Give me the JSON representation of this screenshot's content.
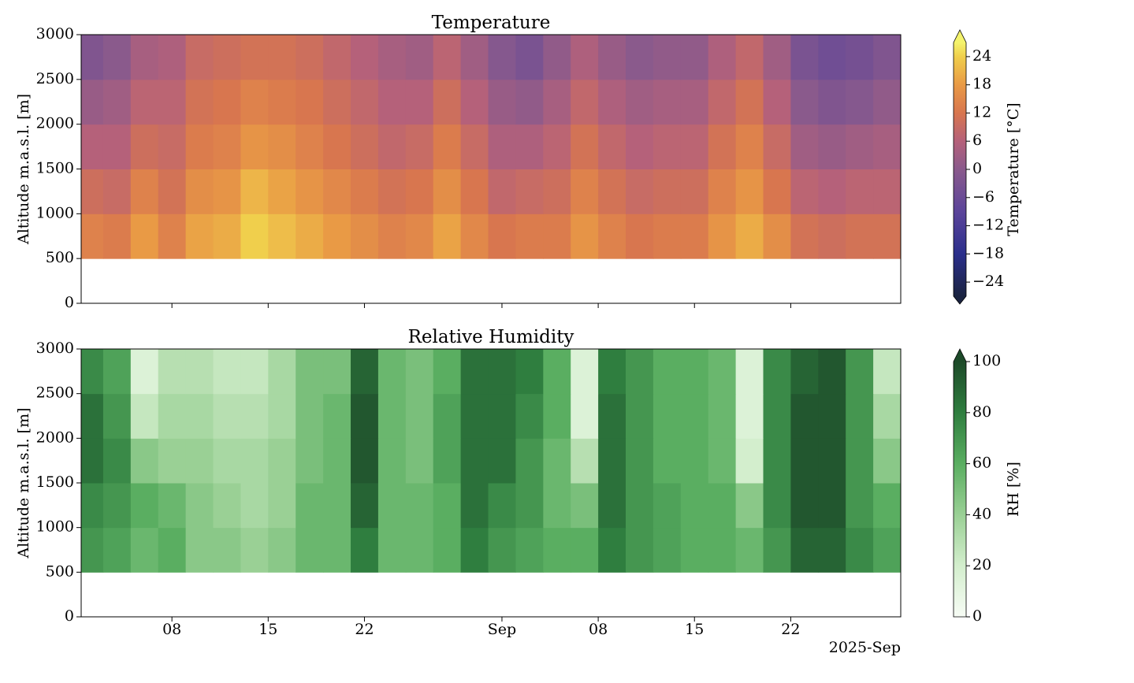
{
  "chart_data": [
    {
      "type": "heatmap",
      "title": "Temperature",
      "ylabel": "Altitude m.a.s.l. [m]",
      "x_edges": [
        0,
        2,
        4,
        6,
        8,
        10,
        12,
        14,
        16,
        18,
        20,
        22,
        24,
        26,
        28,
        30,
        32,
        34,
        36,
        38,
        40,
        42,
        44,
        46,
        48,
        50,
        52,
        54,
        56,
        58,
        60
      ],
      "y_edges": [
        500,
        1000,
        1500,
        2000,
        2500,
        3000
      ],
      "values": [
        [
          14,
          13,
          18,
          14,
          19,
          20,
          24,
          22,
          20,
          18,
          16,
          14,
          15,
          19,
          15,
          12,
          13,
          13,
          17,
          14,
          12,
          13,
          13,
          17,
          20,
          16,
          11,
          10,
          11,
          11
        ],
        [
          10,
          9,
          14,
          11,
          16,
          17,
          21,
          19,
          17,
          15,
          13,
          11,
          12,
          16,
          12,
          8,
          9,
          10,
          14,
          11,
          9,
          10,
          10,
          14,
          17,
          12,
          7,
          6,
          7,
          7
        ],
        [
          6,
          6,
          10,
          9,
          13,
          14,
          17,
          16,
          14,
          12,
          10,
          8,
          9,
          13,
          9,
          5,
          5,
          7,
          11,
          8,
          6,
          7,
          7,
          11,
          14,
          9,
          3,
          2,
          3,
          4
        ],
        [
          2,
          3,
          7,
          7,
          11,
          12,
          14,
          13,
          12,
          10,
          8,
          6,
          6,
          10,
          6,
          2,
          1,
          4,
          8,
          5,
          3,
          4,
          4,
          8,
          11,
          6,
          0,
          -2,
          -1,
          1
        ],
        [
          -2,
          0,
          4,
          5,
          9,
          10,
          11,
          11,
          10,
          8,
          6,
          4,
          3,
          7,
          3,
          -1,
          -3,
          1,
          5,
          2,
          0,
          1,
          1,
          5,
          8,
          3,
          -3,
          -5,
          -4,
          -2
        ]
      ],
      "xlim": [
        0.4,
        60
      ],
      "ylim": [
        0,
        3000
      ],
      "xticks": [
        {
          "value": 7,
          "label": "08"
        },
        {
          "value": 14,
          "label": "15"
        },
        {
          "value": 21,
          "label": "22"
        },
        {
          "value": 31,
          "label": "Sep"
        },
        {
          "value": 38,
          "label": "08"
        },
        {
          "value": 45,
          "label": "15"
        },
        {
          "value": 52,
          "label": "22"
        }
      ],
      "yticks": [
        0,
        500,
        1000,
        1500,
        2000,
        2500,
        3000
      ],
      "show_xticklabels": false,
      "colorbar": {
        "label": "Temperature [°C]",
        "lim": [
          -27,
          27
        ],
        "extend": "both",
        "ticks": [
          {
            "value": -24,
            "label": "−24"
          },
          {
            "value": -18,
            "label": "−18"
          },
          {
            "value": -12,
            "label": "−12"
          },
          {
            "value": -6,
            "label": "−6"
          },
          0,
          6,
          12,
          18,
          24
        ],
        "colorscale": [
          [
            -27,
            "#1a2340"
          ],
          [
            -18,
            "#2b2f8c"
          ],
          [
            -9,
            "#5b449a"
          ],
          [
            0,
            "#8a5a8c"
          ],
          [
            6,
            "#b5617a"
          ],
          [
            12,
            "#d8764f"
          ],
          [
            18,
            "#e99a45"
          ],
          [
            24,
            "#f0cf4c"
          ],
          [
            27,
            "#f4f36c"
          ]
        ]
      }
    },
    {
      "type": "heatmap",
      "title": "Relative Humidity",
      "ylabel": "Altitude m.a.s.l. [m]",
      "x_edges": [
        0,
        2,
        4,
        6,
        8,
        10,
        12,
        14,
        16,
        18,
        20,
        22,
        24,
        26,
        28,
        30,
        32,
        34,
        36,
        38,
        40,
        42,
        44,
        46,
        48,
        50,
        52,
        54,
        56,
        58,
        60
      ],
      "y_edges": [
        500,
        1000,
        1500,
        2000,
        2500,
        3000
      ],
      "values": [
        [
          70,
          65,
          55,
          60,
          45,
          45,
          40,
          45,
          55,
          55,
          80,
          55,
          55,
          60,
          80,
          70,
          65,
          60,
          60,
          80,
          70,
          65,
          60,
          60,
          55,
          70,
          90,
          90,
          75,
          65
        ],
        [
          75,
          70,
          60,
          55,
          45,
          40,
          35,
          40,
          55,
          55,
          90,
          55,
          55,
          60,
          85,
          75,
          70,
          55,
          50,
          85,
          70,
          65,
          60,
          60,
          45,
          75,
          95,
          95,
          70,
          60
        ],
        [
          85,
          75,
          45,
          40,
          40,
          35,
          35,
          40,
          50,
          55,
          95,
          55,
          50,
          65,
          85,
          85,
          70,
          55,
          30,
          85,
          70,
          60,
          60,
          55,
          20,
          75,
          95,
          95,
          70,
          45
        ],
        [
          85,
          70,
          25,
          35,
          35,
          30,
          30,
          35,
          50,
          55,
          95,
          55,
          50,
          65,
          85,
          85,
          75,
          60,
          15,
          85,
          70,
          60,
          60,
          55,
          15,
          75,
          95,
          95,
          70,
          35
        ],
        [
          75,
          65,
          15,
          30,
          30,
          25,
          25,
          35,
          50,
          50,
          90,
          55,
          50,
          60,
          85,
          85,
          80,
          60,
          15,
          80,
          70,
          60,
          60,
          55,
          15,
          75,
          90,
          95,
          70,
          25
        ]
      ],
      "xlim": [
        0.4,
        60
      ],
      "ylim": [
        0,
        3000
      ],
      "xticks": [
        {
          "value": 7,
          "label": "08"
        },
        {
          "value": 14,
          "label": "15"
        },
        {
          "value": 21,
          "label": "22"
        },
        {
          "value": 31,
          "label": "Sep"
        },
        {
          "value": 38,
          "label": "08"
        },
        {
          "value": 45,
          "label": "15"
        },
        {
          "value": 52,
          "label": "22"
        }
      ],
      "yticks": [
        0,
        500,
        1000,
        1500,
        2000,
        2500,
        3000
      ],
      "show_xticklabels": true,
      "x_offset_label": "2025-Sep",
      "colorbar": {
        "label": "RH [%]",
        "lim": [
          0,
          100
        ],
        "extend": "max",
        "ticks": [
          0,
          20,
          40,
          60,
          80,
          100
        ],
        "colorscale": [
          [
            0,
            "#f7fcf5"
          ],
          [
            20,
            "#d3eecd"
          ],
          [
            40,
            "#9ad095"
          ],
          [
            60,
            "#5aae61"
          ],
          [
            80,
            "#2f7e3f"
          ],
          [
            100,
            "#1d4a29"
          ]
        ]
      }
    }
  ]
}
